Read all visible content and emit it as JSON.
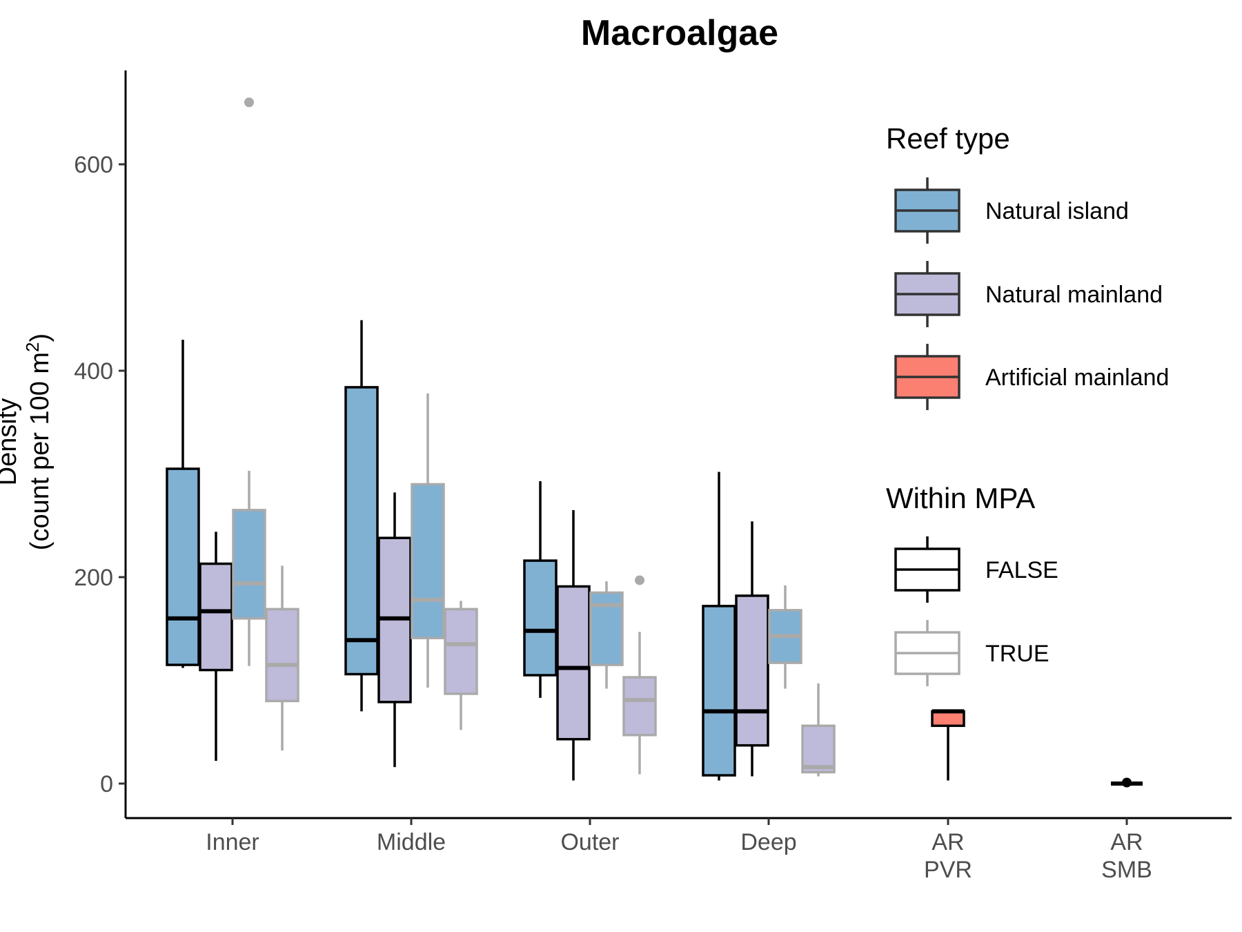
{
  "chart_data": {
    "type": "boxplot",
    "title": "Macroalgae",
    "ylabel_line1": "Density",
    "ylabel_line2_prefix": "(count per 100 m",
    "ylabel_line2_sup": "2",
    "ylabel_line2_suffix": ")",
    "xlabel": "",
    "ylim": [
      -32,
      690
    ],
    "y_ticks": [
      0,
      200,
      400,
      600
    ],
    "y_tick_labels": [
      "0",
      "200",
      "400",
      "600"
    ],
    "categories": [
      {
        "key": "inner",
        "lines": [
          "Inner"
        ]
      },
      {
        "key": "middle",
        "lines": [
          "Middle"
        ]
      },
      {
        "key": "outer",
        "lines": [
          "Outer"
        ]
      },
      {
        "key": "deep",
        "lines": [
          "Deep"
        ]
      },
      {
        "key": "ar_pvr",
        "lines": [
          "AR",
          "PVR"
        ]
      },
      {
        "key": "ar_smb",
        "lines": [
          "AR",
          "SMB"
        ]
      }
    ],
    "reef_type_colors": {
      "Natural island": "#80b1d3",
      "Natural mainland": "#bebada",
      "Artificial mainland": "#fb8072"
    },
    "mpa_colors": {
      "FALSE": "#000000",
      "TRUE": "#aaaaaa"
    },
    "boxes": [
      {
        "category": "inner",
        "slot": 0,
        "reef": "Natural island",
        "mpa": "FALSE",
        "min": 112,
        "q1": 115,
        "median": 160,
        "q3": 305,
        "max": 430,
        "outliers": []
      },
      {
        "category": "inner",
        "slot": 1,
        "reef": "Natural mainland",
        "mpa": "FALSE",
        "min": 22,
        "q1": 110,
        "median": 167,
        "q3": 213,
        "max": 244,
        "outliers": []
      },
      {
        "category": "inner",
        "slot": 2,
        "reef": "Natural island",
        "mpa": "TRUE",
        "min": 114,
        "q1": 160,
        "median": 194,
        "q3": 265,
        "max": 303,
        "outliers": [
          660
        ]
      },
      {
        "category": "inner",
        "slot": 3,
        "reef": "Natural mainland",
        "mpa": "TRUE",
        "min": 32,
        "q1": 80,
        "median": 115,
        "q3": 169,
        "max": 211,
        "outliers": []
      },
      {
        "category": "middle",
        "slot": 0,
        "reef": "Natural island",
        "mpa": "FALSE",
        "min": 70,
        "q1": 106,
        "median": 139,
        "q3": 384,
        "max": 449,
        "outliers": []
      },
      {
        "category": "middle",
        "slot": 1,
        "reef": "Natural mainland",
        "mpa": "FALSE",
        "min": 16,
        "q1": 79,
        "median": 160,
        "q3": 238,
        "max": 282,
        "outliers": []
      },
      {
        "category": "middle",
        "slot": 2,
        "reef": "Natural island",
        "mpa": "TRUE",
        "min": 93,
        "q1": 141,
        "median": 178,
        "q3": 290,
        "max": 378,
        "outliers": []
      },
      {
        "category": "middle",
        "slot": 3,
        "reef": "Natural mainland",
        "mpa": "TRUE",
        "min": 52,
        "q1": 87,
        "median": 135,
        "q3": 169,
        "max": 177,
        "outliers": []
      },
      {
        "category": "outer",
        "slot": 0,
        "reef": "Natural island",
        "mpa": "FALSE",
        "min": 83,
        "q1": 105,
        "median": 148,
        "q3": 216,
        "max": 293,
        "outliers": []
      },
      {
        "category": "outer",
        "slot": 1,
        "reef": "Natural mainland",
        "mpa": "FALSE",
        "min": 3,
        "q1": 43,
        "median": 112,
        "q3": 191,
        "max": 265,
        "outliers": []
      },
      {
        "category": "outer",
        "slot": 2,
        "reef": "Natural island",
        "mpa": "TRUE",
        "min": 92,
        "q1": 115,
        "median": 173,
        "q3": 185,
        "max": 196,
        "outliers": []
      },
      {
        "category": "outer",
        "slot": 3,
        "reef": "Natural mainland",
        "mpa": "TRUE",
        "min": 9,
        "q1": 47,
        "median": 81,
        "q3": 103,
        "max": 147,
        "outliers": [
          197
        ]
      },
      {
        "category": "deep",
        "slot": 0,
        "reef": "Natural island",
        "mpa": "FALSE",
        "min": 3,
        "q1": 8,
        "median": 70,
        "q3": 172,
        "max": 302,
        "outliers": []
      },
      {
        "category": "deep",
        "slot": 1,
        "reef": "Natural mainland",
        "mpa": "FALSE",
        "min": 7,
        "q1": 37,
        "median": 70,
        "q3": 182,
        "max": 254,
        "outliers": []
      },
      {
        "category": "deep",
        "slot": 2,
        "reef": "Natural island",
        "mpa": "TRUE",
        "min": 92,
        "q1": 117,
        "median": 143,
        "q3": 168,
        "max": 192,
        "outliers": []
      },
      {
        "category": "deep",
        "slot": 3,
        "reef": "Natural mainland",
        "mpa": "TRUE",
        "min": 7,
        "q1": 11,
        "median": 16,
        "q3": 56,
        "max": 97,
        "outliers": []
      },
      {
        "category": "ar_pvr",
        "slot": 0,
        "reef": "Artificial mainland",
        "mpa": "FALSE",
        "min": 3,
        "q1": 56,
        "median": 70,
        "q3": 70,
        "max": 70,
        "outliers": []
      },
      {
        "category": "ar_smb",
        "slot": 0,
        "reef": "Artificial mainland",
        "mpa": "FALSE",
        "min": 0,
        "q1": 0,
        "median": 0,
        "q3": 0,
        "max": 0,
        "outliers": [
          1
        ]
      }
    ],
    "legend": {
      "placement": "right",
      "reef_title": "Reef type",
      "reef_items": [
        "Natural island",
        "Natural mainland",
        "Artificial mainland"
      ],
      "mpa_title": "Within MPA",
      "mpa_items": [
        "FALSE",
        "TRUE"
      ]
    }
  }
}
